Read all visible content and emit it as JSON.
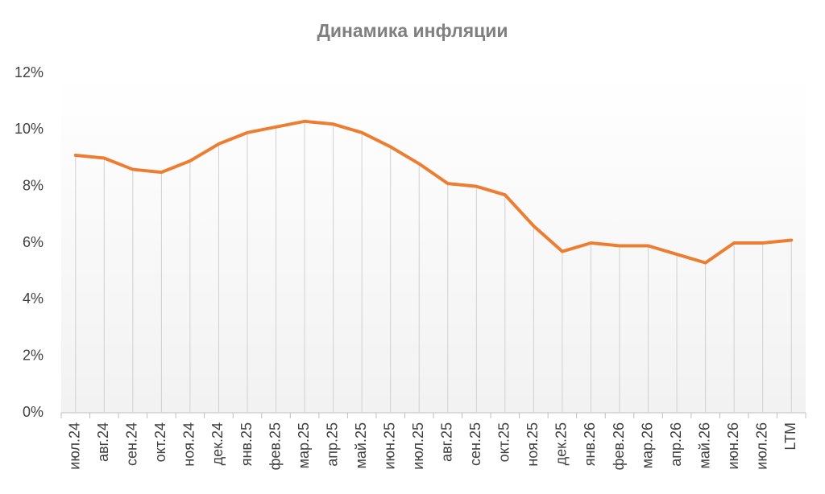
{
  "chart_data": {
    "type": "line",
    "title": "Динамика инфляции",
    "categories": [
      "июл.24",
      "авг.24",
      "сен.24",
      "окт.24",
      "ноя.24",
      "дек.24",
      "янв.25",
      "фев.25",
      "мар.25",
      "апр.25",
      "май.25",
      "июн.25",
      "июл.25",
      "авг.25",
      "сен.25",
      "окт.25",
      "ноя.25",
      "дек.25",
      "янв.26",
      "фев.26",
      "мар.26",
      "апр.26",
      "май.26",
      "июн.26",
      "июл.26",
      "LTM"
    ],
    "values": [
      9.1,
      9.0,
      8.6,
      8.5,
      8.9,
      9.5,
      9.9,
      10.1,
      10.3,
      10.2,
      9.9,
      9.4,
      8.8,
      8.1,
      8.0,
      7.7,
      6.6,
      5.7,
      6.0,
      5.9,
      5.9,
      5.6,
      5.3,
      6.0,
      6.0,
      6.1
    ],
    "color": "#ed7d31",
    "ylim": [
      0,
      12
    ],
    "yticks": [
      {
        "value": 0,
        "label": "0%"
      },
      {
        "value": 2,
        "label": "2%"
      },
      {
        "value": 4,
        "label": "4%"
      },
      {
        "value": 6,
        "label": "6%"
      },
      {
        "value": 8,
        "label": "8%"
      },
      {
        "value": 10,
        "label": "10%"
      },
      {
        "value": 12,
        "label": "12%"
      }
    ],
    "grid": false,
    "drop_lines": true
  }
}
